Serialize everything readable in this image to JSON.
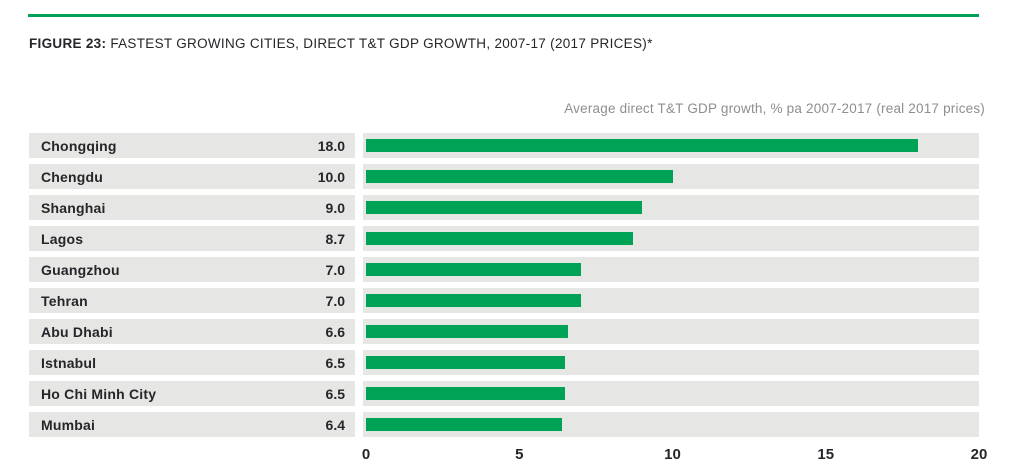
{
  "header": {
    "figure_label": "FIGURE 23:",
    "title": " FASTEST GROWING CITIES, DIRECT T&T GDP GROWTH, 2007-17 (2017 PRICES)*"
  },
  "chart_data": {
    "type": "bar",
    "orientation": "horizontal",
    "title": "FIGURE 23: FASTEST GROWING CITIES, DIRECT T&T GDP GROWTH, 2007-17 (2017 PRICES)*",
    "axis_note": "Average direct T&T GDP growth, % pa 2007-2017 (real 2017 prices)",
    "categories": [
      "Chongqing",
      "Chengdu",
      "Shanghai",
      "Lagos",
      "Guangzhou",
      "Tehran",
      "Abu Dhabi",
      "Istnabul",
      "Ho Chi Minh City",
      "Mumbai"
    ],
    "values": [
      18.0,
      10.0,
      9.0,
      8.7,
      7.0,
      7.0,
      6.6,
      6.5,
      6.5,
      6.4
    ],
    "value_labels": [
      "18.0",
      "10.0",
      "9.0",
      "8.7",
      "7.0",
      "7.0",
      "6.6",
      "6.5",
      "6.5",
      "6.4"
    ],
    "xlabel": "",
    "ylabel": "",
    "xlim": [
      0,
      20
    ],
    "x_ticks": [
      "0",
      "5",
      "10",
      "15",
      "20"
    ],
    "grid": false,
    "legend": "none"
  },
  "colors": {
    "bar_green": "#00A355",
    "rule_green": "#00A355",
    "row_stripe": "#E6E6E5",
    "text_dark": "#26262A",
    "note_gray": "#8C8E90"
  }
}
